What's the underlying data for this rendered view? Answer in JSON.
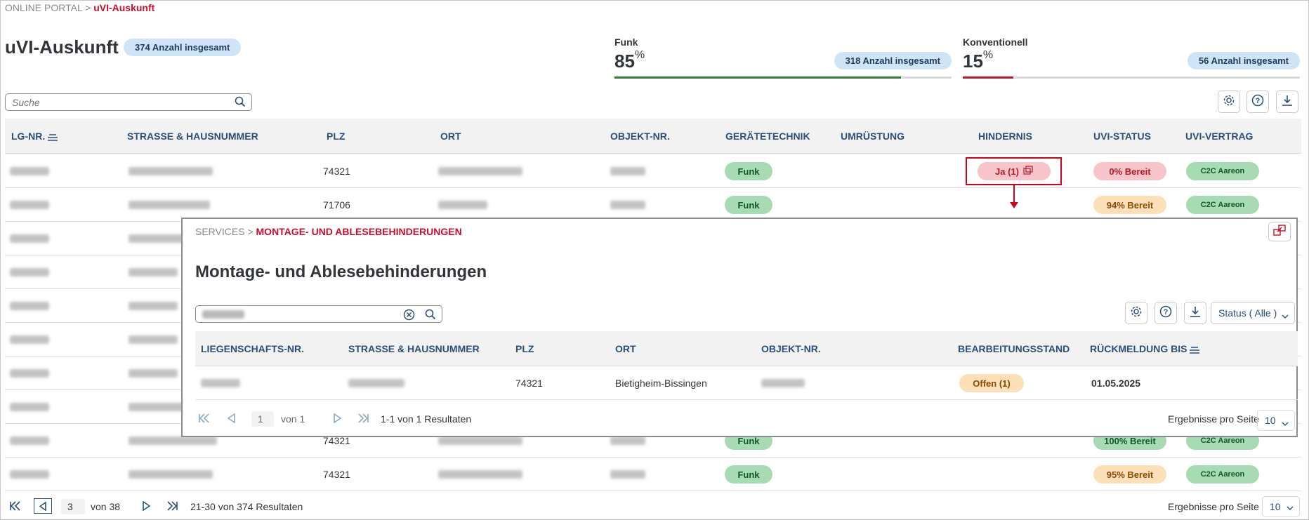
{
  "breadcrumb": {
    "root": "ONLINE PORTAL",
    "sep": ">",
    "current": "uVI-Auskunft"
  },
  "page": {
    "title": "uVI-Auskunft",
    "total_badge": "374 Anzahl insgesamt"
  },
  "kpis": [
    {
      "label": "Funk",
      "value": "85",
      "unit": "%",
      "badge": "318 Anzahl insgesamt",
      "percent": 85,
      "color": "#2e7d32"
    },
    {
      "label": "Konventionell",
      "value": "15",
      "unit": "%",
      "badge": "56 Anzahl insgesamt",
      "percent": 15,
      "color": "#c8102e"
    }
  ],
  "search": {
    "placeholder": "Suche"
  },
  "toolbar": {
    "icons": [
      "gear-icon",
      "help-icon",
      "download-icon"
    ]
  },
  "table": {
    "columns": [
      "LG-NR.",
      "STRASSE & HAUSNUMMER",
      "PLZ",
      "ORT",
      "OBJEKT-NR.",
      "GERÄTETECHNIK",
      "UMRÜSTUNG",
      "HINDERNIS",
      "UVI-STATUS",
      "UVI-VERTRAG"
    ],
    "rows": [
      {
        "plz": "74321",
        "geraet": "Funk",
        "hindernis": "Ja (1)",
        "status": "0% Bereit",
        "status_type": "red",
        "vertrag": "C2C Aareon"
      },
      {
        "plz": "71706",
        "geraet": "Funk",
        "hindernis": "",
        "status": "94% Bereit",
        "status_type": "orange",
        "vertrag": "C2C Aareon"
      },
      {
        "plz": "",
        "geraet": "",
        "hindernis": "",
        "status": "",
        "status_type": "",
        "vertrag": ""
      },
      {
        "plz": "",
        "geraet": "",
        "hindernis": "",
        "status": "",
        "status_type": "",
        "vertrag": ""
      },
      {
        "plz": "",
        "geraet": "",
        "hindernis": "",
        "status": "",
        "status_type": "",
        "vertrag": ""
      },
      {
        "plz": "",
        "geraet": "",
        "hindernis": "",
        "status": "",
        "status_type": "",
        "vertrag": ""
      },
      {
        "plz": "",
        "geraet": "",
        "hindernis": "",
        "status": "",
        "status_type": "",
        "vertrag": ""
      },
      {
        "plz": "",
        "geraet": "",
        "hindernis": "",
        "status": "",
        "status_type": "",
        "vertrag": ""
      },
      {
        "plz": "74321",
        "geraet": "Funk",
        "hindernis": "",
        "status": "100% Bereit",
        "status_type": "green",
        "vertrag": "C2C Aareon"
      },
      {
        "plz": "74321",
        "geraet": "Funk",
        "hindernis": "",
        "status": "95% Bereit",
        "status_type": "orange",
        "vertrag": "C2C Aareon"
      }
    ]
  },
  "pager": {
    "page": "3",
    "of_label": "von 38",
    "result_text": "21-30 von 374 Resultaten",
    "per_page_label": "Ergebnisse pro Seite",
    "per_page": "10"
  },
  "panel": {
    "breadcrumb_root": "SERVICES",
    "breadcrumb_sep": ">",
    "breadcrumb_current": "MONTAGE- UND ABLESEBEHINDERUNGEN",
    "title": "Montage- und Ablesebehinderungen",
    "status_filter": "Status ( Alle )",
    "columns": [
      "LIEGENSCHAFTS-NR.",
      "STRASSE & HAUSNUMMER",
      "PLZ",
      "ORT",
      "OBJEKT-NR.",
      "BEARBEITUNGSSTAND",
      "RÜCKMELDUNG BIS"
    ],
    "row": {
      "plz": "74321",
      "ort": "Bietigheim-Bissingen",
      "stand": "Offen (1)",
      "rueckmeldung": "01.05.2025"
    },
    "pager": {
      "page": "1",
      "of_label": "von 1",
      "result_text": "1-1 von 1 Resultaten",
      "per_page_label": "Ergebnisse pro Seite",
      "per_page": "10"
    }
  }
}
